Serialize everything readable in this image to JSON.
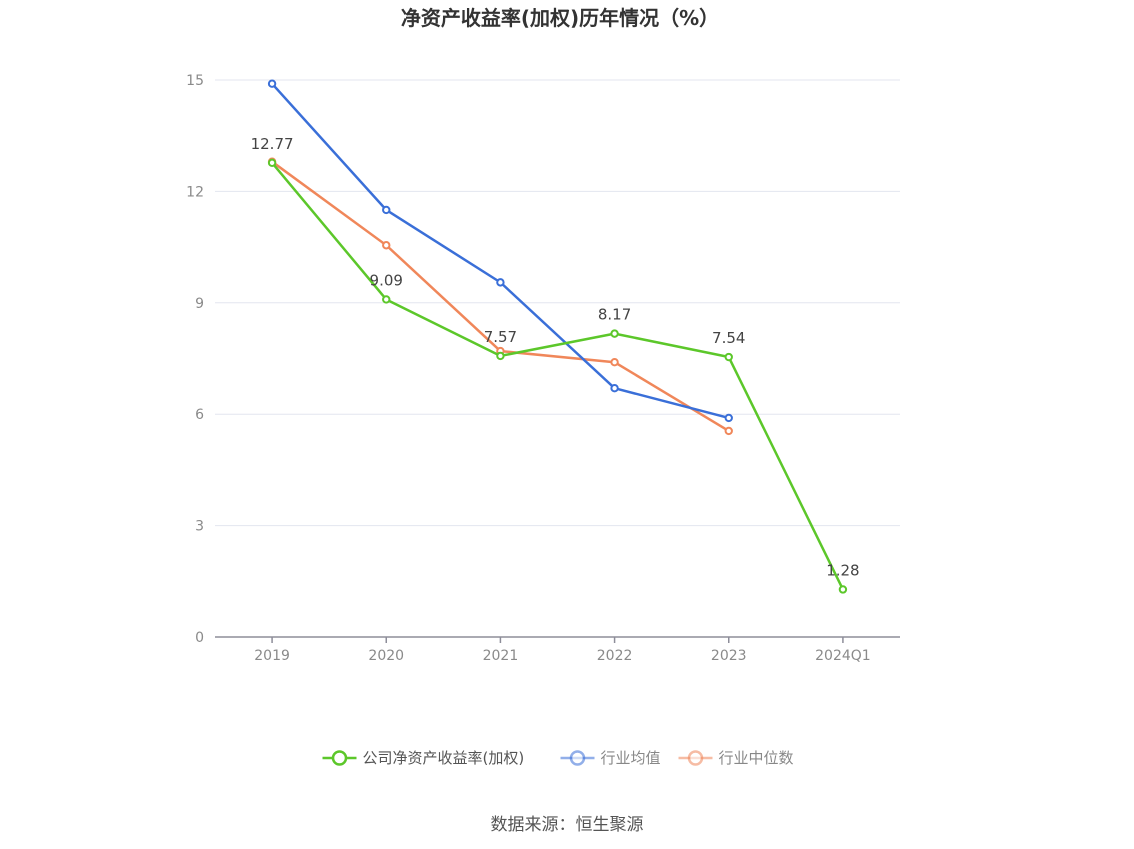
{
  "chart_data": {
    "type": "line",
    "title": "净资产收益率(加权)历年情况（%）",
    "categories": [
      "2019",
      "2020",
      "2021",
      "2022",
      "2023",
      "2024Q1"
    ],
    "ylim": [
      0,
      15
    ],
    "yticks": [
      "0",
      "3",
      "6",
      "9",
      "12",
      "15"
    ],
    "grid": true,
    "legend_position": "bottom",
    "series": [
      {
        "name": "公司净资产收益率(加权)",
        "color": "#5cc72a",
        "values": [
          12.77,
          9.09,
          7.57,
          8.17,
          7.54,
          1.28
        ],
        "labels": [
          "12.77",
          "9.09",
          "7.57",
          "8.17",
          "7.54",
          "1.28"
        ]
      },
      {
        "name": "行业均值",
        "color": "#3a6fd8",
        "values": [
          14.9,
          11.5,
          9.55,
          6.7,
          5.9,
          null
        ]
      },
      {
        "name": "行业中位数",
        "color": "#f0875a",
        "values": [
          12.8,
          10.55,
          7.7,
          7.4,
          5.55,
          null
        ]
      }
    ]
  },
  "source": "数据来源：恒生聚源"
}
